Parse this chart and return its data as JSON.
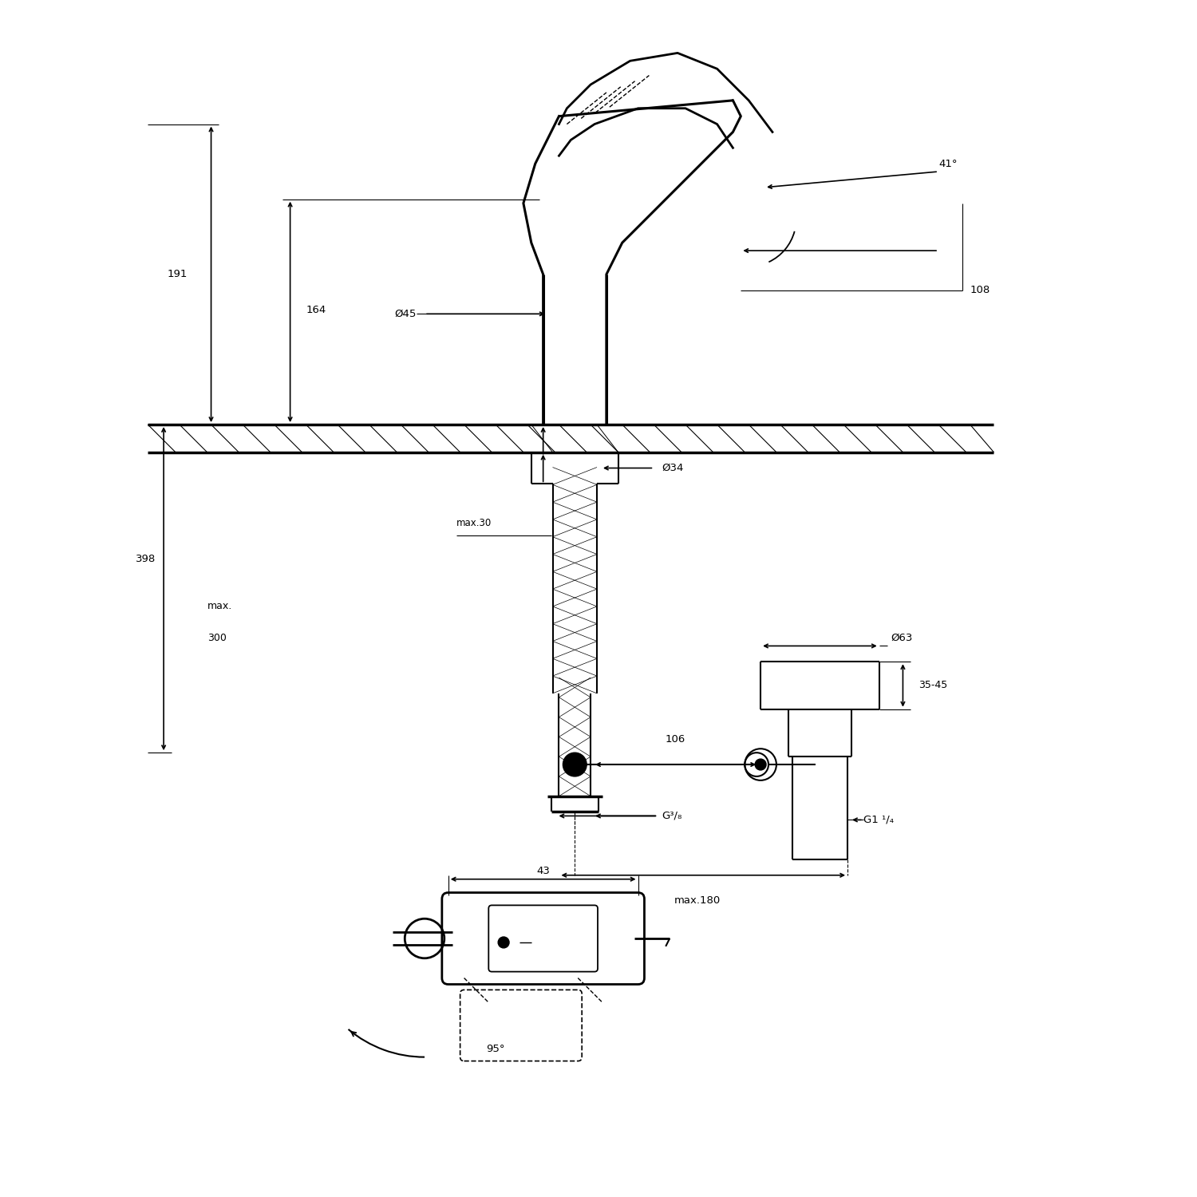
{
  "bg_color": "#ffffff",
  "line_color": "#000000",
  "fig_width": 15,
  "fig_height": 15,
  "labels": {
    "d191": "191",
    "d164": "164",
    "d398": "398",
    "dmax300": "max.\n300",
    "dmax30": "max.30",
    "d45": "Ø45",
    "d34": "Ø34",
    "d63": "Ø63",
    "d106": "106",
    "d108": "108",
    "d3545": "35-45",
    "d41": "41°",
    "dg38": "G³/₈",
    "dg114": "G1 ¹/₄",
    "dmax180": "max.180",
    "d43": "43",
    "d95": "95°"
  }
}
